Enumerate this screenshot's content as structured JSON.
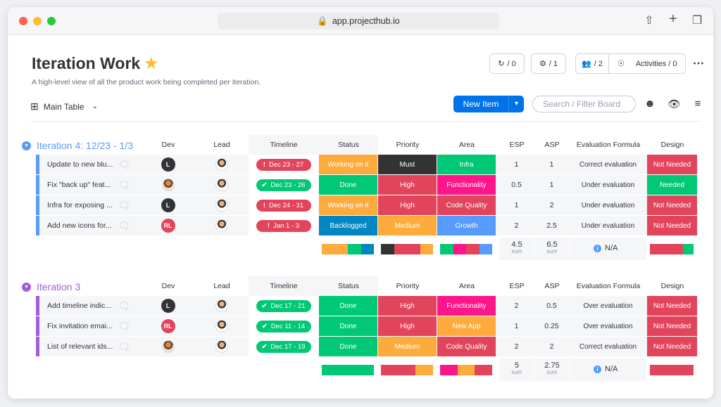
{
  "browser": {
    "url": "app.projecthub.io"
  },
  "header": {
    "title": "Iteration Work",
    "subtitle": "A high-level view of all the product work being completed per iteration.",
    "automations_count": "/ 0",
    "integrations_count": "/ 1",
    "members_count": "/ 2",
    "activities_label": "Activities / 0"
  },
  "toolbar": {
    "view_label": "Main Table",
    "new_item_label": "New Item",
    "search_placeholder": "Search / Filter Board"
  },
  "columns": [
    "Dev",
    "Lead",
    "Timeline",
    "Status",
    "Priority",
    "Area",
    "ESP",
    "ASP",
    "Evaluation Formula",
    "Design"
  ],
  "colors": {
    "working": "#fdab3d",
    "done": "#00c875",
    "stuck": "#e2445c",
    "backlogged": "#0086c0",
    "must": "#333333",
    "high": "#e2445c",
    "medium": "#fdab3d",
    "infra": "#00c875",
    "functionality": "#ff158a",
    "code_quality": "#e2445c",
    "growth": "#579bfc",
    "new_app": "#fdab3d",
    "not_needed": "#e2445c",
    "needed": "#00c875",
    "group1": "#579bfc",
    "group2": "#a25ddc"
  },
  "groups": [
    {
      "title": "Iteration 4: 12/23 - 1/3",
      "rows": [
        {
          "name": "Update to new blu...",
          "dev": "L",
          "timeline": "Dec 23 - 27",
          "timeline_state": "overdue",
          "status": "Working on it",
          "status_color": "#fdab3d",
          "priority": "Must",
          "priority_color": "#333333",
          "area": "Infra",
          "area_color": "#00c875",
          "esp": "1",
          "asp": "1",
          "evaluation": "Correct evaluation",
          "design": "Not Needed",
          "design_color": "#e2445c"
        },
        {
          "name": "Fix \"back up\" feat...",
          "dev": "photo",
          "timeline": "Dec 23 - 26",
          "timeline_state": "done",
          "status": "Done",
          "status_color": "#00c875",
          "priority": "High",
          "priority_color": "#e2445c",
          "area": "Functionality",
          "area_color": "#ff158a",
          "esp": "0.5",
          "asp": "1",
          "evaluation": "Under evaluation",
          "design": "Needed",
          "design_color": "#00c875"
        },
        {
          "name": "Infra for exposing ...",
          "dev": "L",
          "timeline": "Dec 24 - 31",
          "timeline_state": "overdue",
          "status": "Working on it",
          "status_color": "#fdab3d",
          "priority": "High",
          "priority_color": "#e2445c",
          "area": "Code Quality",
          "area_color": "#e2445c",
          "esp": "1",
          "asp": "2",
          "evaluation": "Under evaluation",
          "design": "Not Needed",
          "design_color": "#e2445c"
        },
        {
          "name": "Add new icons for...",
          "dev": "RL",
          "timeline": "Jan 1 - 3",
          "timeline_state": "overdue",
          "status": "Backlogged",
          "status_color": "#0086c0",
          "priority": "Medium",
          "priority_color": "#fdab3d",
          "area": "Growth",
          "area_color": "#579bfc",
          "esp": "2",
          "asp": "2.5",
          "evaluation": "Under evaluation",
          "design": "Not Needed",
          "design_color": "#e2445c"
        }
      ],
      "summary": {
        "esp": "4.5",
        "asp": "6.5",
        "sum_label": "sum",
        "evaluation": "N/A"
      }
    },
    {
      "title": "Iteration 3",
      "rows": [
        {
          "name": "Add timeline indic...",
          "dev": "L",
          "timeline": "Dec 17 - 21",
          "timeline_state": "done",
          "status": "Done",
          "status_color": "#00c875",
          "priority": "High",
          "priority_color": "#e2445c",
          "area": "Functionality",
          "area_color": "#ff158a",
          "esp": "2",
          "asp": "0.5",
          "evaluation": "Over evaluation",
          "design": "Not Needed",
          "design_color": "#e2445c"
        },
        {
          "name": "Fix invitation emai...",
          "dev": "RL",
          "timeline": "Dec 11 - 14",
          "timeline_state": "done",
          "status": "Done",
          "status_color": "#00c875",
          "priority": "High",
          "priority_color": "#e2445c",
          "area": "New App",
          "area_color": "#fdab3d",
          "esp": "1",
          "asp": "0.25",
          "evaluation": "Over evaluation",
          "design": "Not Needed",
          "design_color": "#e2445c"
        },
        {
          "name": "List of relevant ids...",
          "dev": "photo",
          "timeline": "Dec 17 - 19",
          "timeline_state": "done",
          "status": "Done",
          "status_color": "#00c875",
          "priority": "Medium",
          "priority_color": "#fdab3d",
          "area": "Code Quality",
          "area_color": "#e2445c",
          "esp": "2",
          "asp": "2",
          "evaluation": "Correct evaluation",
          "design": "Not Needed",
          "design_color": "#e2445c"
        }
      ],
      "summary": {
        "esp": "5",
        "asp": "2.75",
        "sum_label": "sum",
        "evaluation": "N/A"
      }
    }
  ]
}
